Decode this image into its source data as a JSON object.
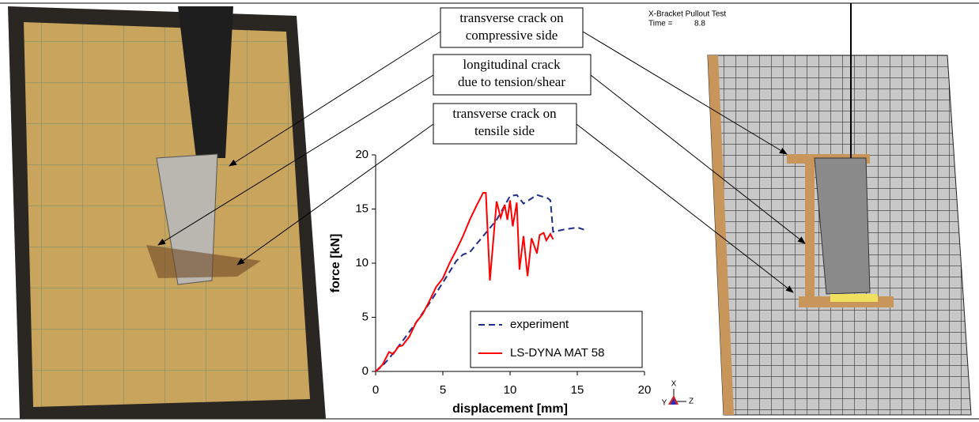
{
  "chart_data": {
    "type": "line",
    "xlabel": "displacement [mm]",
    "ylabel": "force [kN]",
    "xlim": [
      0,
      20
    ],
    "ylim": [
      0,
      20
    ],
    "xticks": [
      0,
      5,
      10,
      15,
      20
    ],
    "yticks": [
      0,
      5,
      10,
      15,
      20
    ],
    "legend": "lower right",
    "series": [
      {
        "name": "experiment",
        "color": "#1f2e8c",
        "dash": true,
        "x": [
          0,
          0.5,
          1,
          2,
          3,
          4,
          5,
          6,
          6.5,
          7,
          8,
          9,
          10,
          10.5,
          11,
          12,
          12.8,
          13,
          13.2,
          14,
          15,
          15.5
        ],
        "values": [
          0,
          0.5,
          1.2,
          2.8,
          4.5,
          6.3,
          8.2,
          10.2,
          10.8,
          11,
          12.5,
          14,
          16.2,
          16.3,
          15.5,
          16.3,
          16,
          15.8,
          12.9,
          13.1,
          13.3,
          13.1
        ]
      },
      {
        "name": "LS-DYNA MAT 58",
        "color": "#ff0000",
        "dash": false,
        "x": [
          0,
          0.5,
          1,
          1.3,
          1.7,
          2,
          2.5,
          3,
          3.5,
          4,
          4.5,
          5,
          5.5,
          6,
          6.5,
          7,
          7.5,
          8,
          8.2,
          8.5,
          9,
          9.3,
          9.6,
          9.8,
          10,
          10.2,
          10.5,
          10.7,
          11,
          11.3,
          11.6,
          12,
          12.2,
          12.5,
          12.7,
          13,
          13.2
        ],
        "values": [
          0,
          0.6,
          1.8,
          1.6,
          2.3,
          2.4,
          3.2,
          4.5,
          5.3,
          6.5,
          7.8,
          8.6,
          10,
          11.2,
          12.5,
          14,
          15.3,
          16.5,
          16.5,
          8.4,
          15.7,
          14.2,
          15.4,
          14,
          15.8,
          13.4,
          15.6,
          9.4,
          12.5,
          8.8,
          12.3,
          10.9,
          12.6,
          12.8,
          12.1,
          12.7,
          12.2
        ]
      }
    ]
  },
  "callouts": [
    {
      "lines": [
        "transverse crack on",
        "compressive side"
      ]
    },
    {
      "lines": [
        "longitudinal crack",
        "due to tension/shear"
      ]
    },
    {
      "lines": [
        "transverse crack on",
        "tensile side"
      ]
    }
  ],
  "fe_view": {
    "title": "X-Bracket Pullout Test",
    "time_label": "Time =",
    "time_value": "8.8",
    "axes": [
      "X",
      "Y",
      "Z"
    ]
  }
}
